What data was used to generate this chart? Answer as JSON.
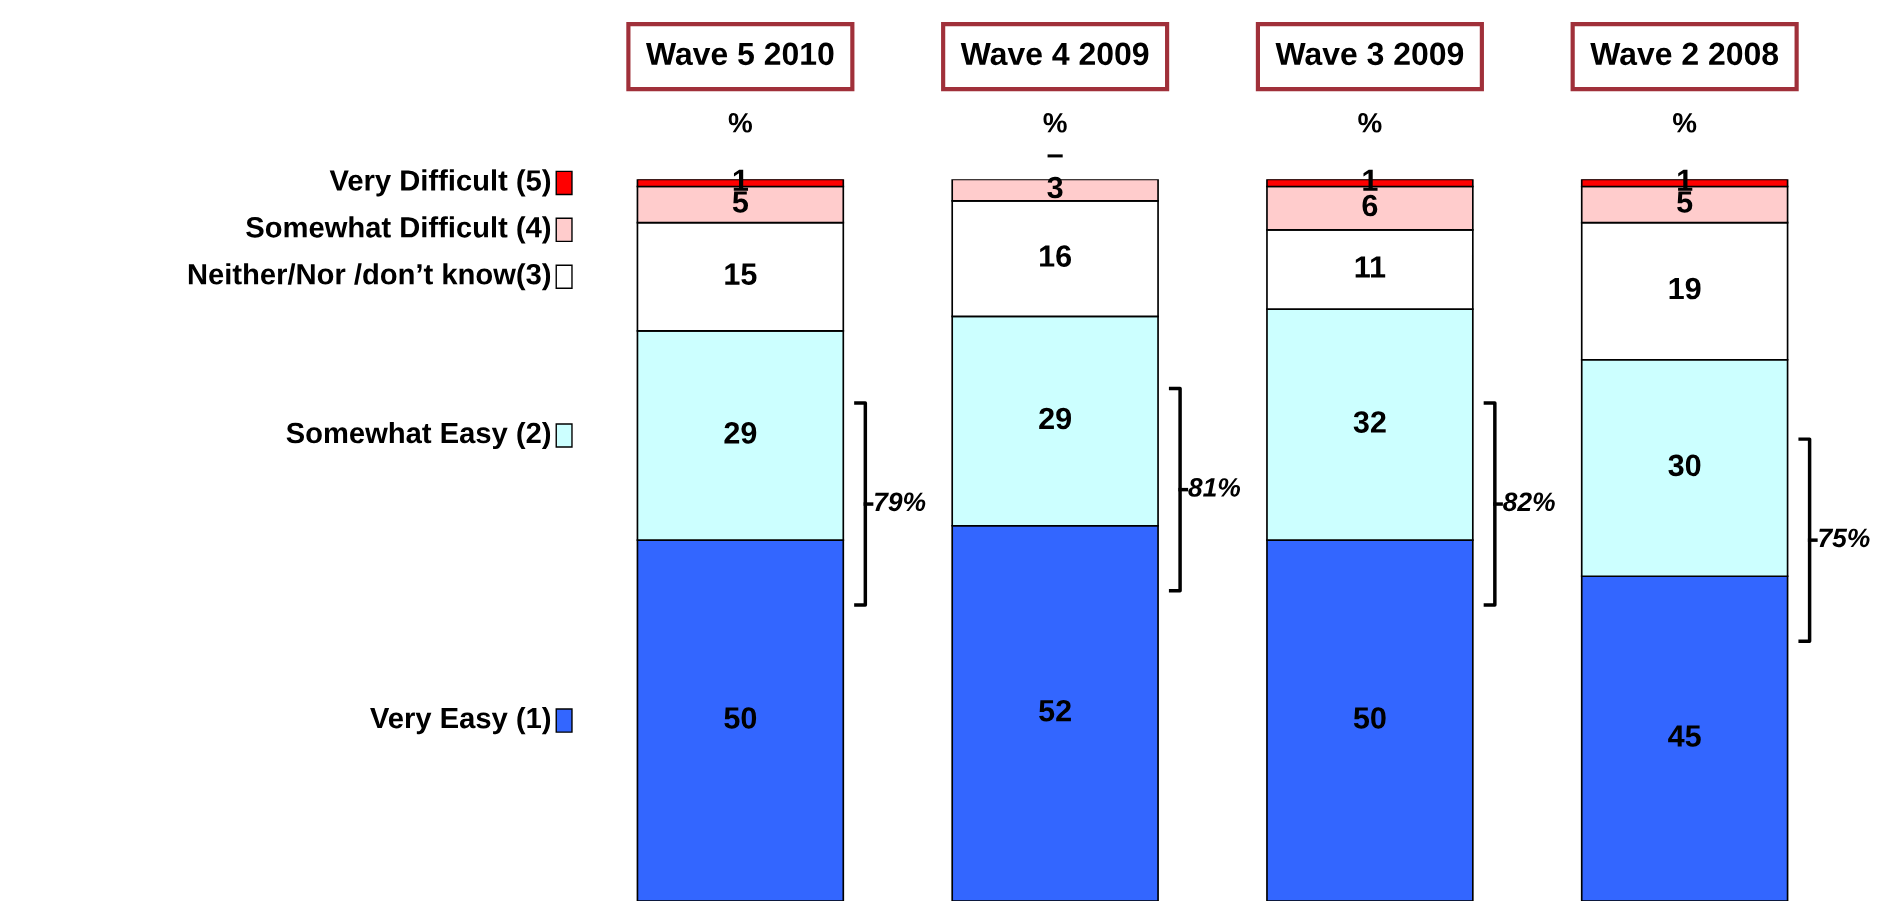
{
  "chart_data": {
    "type": "bar",
    "stacked": true,
    "categories": [
      "Wave 5 2010",
      "Wave 4 2009",
      "Wave 3 2009",
      "Wave 2 2008"
    ],
    "series": [
      {
        "name": "Very Easy (1)",
        "color": "#3366ff",
        "values": [
          50,
          52,
          50,
          45
        ]
      },
      {
        "name": "Somewhat Easy (2)",
        "color": "#ccffff",
        "values": [
          29,
          29,
          32,
          30
        ]
      },
      {
        "name": "Neither/Nor /don’t know(3)",
        "color": "#ffffff",
        "values": [
          15,
          16,
          11,
          19
        ]
      },
      {
        "name": "Somewhat Difficult (4)",
        "color": "#ffcccc",
        "values": [
          5,
          3,
          6,
          5
        ]
      },
      {
        "name": "Very Difficult (5)",
        "color": "#ff0000",
        "values": [
          1,
          0,
          1,
          1
        ],
        "value_labels": [
          "1",
          "–",
          "1",
          "1"
        ]
      }
    ],
    "data_labels": true,
    "ylim": [
      0,
      100
    ],
    "legend": "left",
    "tick_labels": "x",
    "annotations": [
      "%",
      "%",
      "%",
      "%",
      "79%",
      "81%",
      "82%",
      "75%"
    ]
  }
}
